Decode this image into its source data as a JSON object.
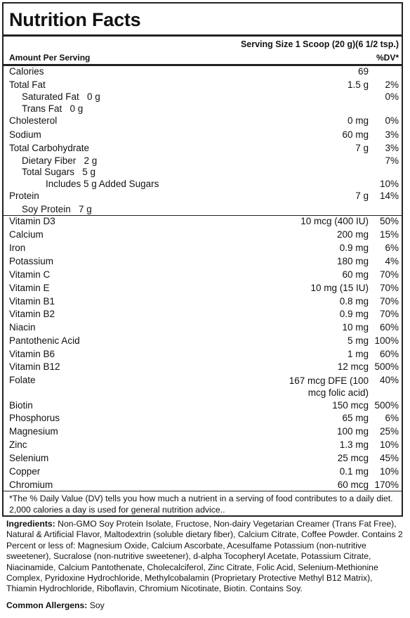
{
  "title": "Nutrition Facts",
  "serving_size": "Serving Size 1 Scoop (20 g)(6 1/2 tsp.)",
  "amount_per_serving": "Amount Per Serving",
  "dv_header": "%DV*",
  "macros": [
    {
      "name": "Calories",
      "amount": "69",
      "dv": ""
    },
    {
      "name": "Total Fat",
      "amount": "1.5 g",
      "dv": "2%"
    },
    {
      "name": "Saturated Fat   0 g",
      "amount": "",
      "dv": "0%"
    },
    {
      "name": "Trans Fat   0 g",
      "amount": "",
      "dv": ""
    },
    {
      "name": "Cholesterol",
      "amount": "0 mg",
      "dv": "0%"
    },
    {
      "name": "Sodium",
      "amount": "60 mg",
      "dv": "3%"
    },
    {
      "name": "Total Carbohydrate",
      "amount": "7 g",
      "dv": "3%"
    },
    {
      "name": "Dietary Fiber   2 g",
      "amount": "",
      "dv": "7%"
    },
    {
      "name": "Total Sugars   5 g",
      "amount": "",
      "dv": ""
    },
    {
      "name": "Includes 5 g Added Sugars",
      "amount": "",
      "dv": "10%"
    },
    {
      "name": "Protein",
      "amount": "7 g",
      "dv": "14%"
    },
    {
      "name": "Soy Protein   7 g",
      "amount": "",
      "dv": ""
    }
  ],
  "micros": [
    {
      "name": "Vitamin D3",
      "amount": "10 mcg (400 IU)",
      "dv": "50%"
    },
    {
      "name": "Calcium",
      "amount": "200 mg",
      "dv": "15%"
    },
    {
      "name": "Iron",
      "amount": "0.9 mg",
      "dv": "6%"
    },
    {
      "name": "Potassium",
      "amount": "180 mg",
      "dv": "4%"
    },
    {
      "name": "Vitamin C",
      "amount": "60 mg",
      "dv": "70%"
    },
    {
      "name": "Vitamin E",
      "amount": "10 mg (15 IU)",
      "dv": "70%"
    },
    {
      "name": "Vitamin B1",
      "amount": "0.8 mg",
      "dv": "70%"
    },
    {
      "name": "Vitamin B2",
      "amount": "0.9 mg",
      "dv": "70%"
    },
    {
      "name": "Niacin",
      "amount": "10 mg",
      "dv": "60%"
    },
    {
      "name": "Pantothenic Acid",
      "amount": "5 mg",
      "dv": "100%"
    },
    {
      "name": "Vitamin B6",
      "amount": "1 mg",
      "dv": "60%"
    },
    {
      "name": "Vitamin B12",
      "amount": "12 mcg",
      "dv": "500%"
    },
    {
      "name": "Folate",
      "amount": "167 mcg DFE (100 mcg folic acid)",
      "dv": "40%"
    },
    {
      "name": "Biotin",
      "amount": "150 mcg",
      "dv": "500%"
    },
    {
      "name": "Phosphorus",
      "amount": "65 mg",
      "dv": "6%"
    },
    {
      "name": "Magnesium",
      "amount": "100 mg",
      "dv": "25%"
    },
    {
      "name": "Zinc",
      "amount": "1.3 mg",
      "dv": "10%"
    },
    {
      "name": "Selenium",
      "amount": "25 mcg",
      "dv": "45%"
    },
    {
      "name": "Copper",
      "amount": "0.1 mg",
      "dv": "10%"
    },
    {
      "name": "Chromium",
      "amount": "60 mcg",
      "dv": "170%"
    }
  ],
  "footnote": "*The % Daily Value (DV) tells you how much a nutrient in a serving of food contributes to a daily diet. 2,000 calories a day is used for general nutrition advice..",
  "ingredients_label": "Ingredients:",
  "ingredients": "Non-GMO Soy Protein Isolate, Fructose, Non-dairy Vegetarian Creamer (Trans Fat Free), Natural & Artificial Flavor, Maltodextrin (soluble dietary fiber), Calcium Citrate, Coffee Powder. Contains 2 Percent or less of: Magnesium Oxide, Calcium Ascorbate, Acesulfame Potassium (non-nutritive sweetener), Sucralose (non-nutritive sweetener), d-alpha Tocopheryl Acetate, Potassium Citrate, Niacinamide, Calcium Pantothenate, Cholecalciferol, Zinc Citrate, Folic Acid, Selenium-Methionine Complex, Pyridoxine Hydrochloride, Methylcobalamin (Proprietary Protective Methyl B12 Matrix), Thiamin Hydrochloride, Riboflavin, Chromium Nicotinate, Biotin. Contains Soy.",
  "allergens_label": "Common Allergens:",
  "allergens": "Soy"
}
